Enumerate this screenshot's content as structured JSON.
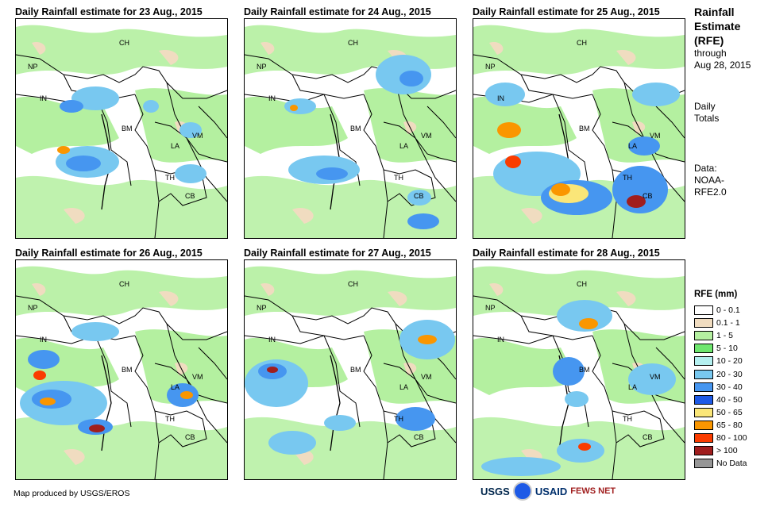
{
  "panels": [
    {
      "title": "Daily Rainfall estimate for 23 Aug., 2015"
    },
    {
      "title": "Daily Rainfall estimate for 24 Aug., 2015"
    },
    {
      "title": "Daily Rainfall estimate for 25 Aug., 2015"
    },
    {
      "title": "Daily Rainfall estimate for 26 Aug., 2015"
    },
    {
      "title": "Daily Rainfall estimate for 27 Aug., 2015"
    },
    {
      "title": "Daily Rainfall estimate for 28 Aug., 2015"
    }
  ],
  "country_labels": {
    "ch": "CH",
    "np": "NP",
    "in": "IN",
    "bm": "BM",
    "la": "LA",
    "vm": "VM",
    "th": "TH",
    "cb": "CB"
  },
  "sidebar": {
    "title_line1": "Rainfall",
    "title_line2": "Estimate",
    "title_line3": "(RFE)",
    "through": "through",
    "date": "Aug 28, 2015",
    "daily": "Daily",
    "totals": "Totals",
    "data_label": "Data:",
    "source1": "NOAA-",
    "source2": "RFE2.0"
  },
  "legend": {
    "title": "RFE (mm)",
    "items": [
      {
        "label": "0 - 0.1",
        "color": "#ffffff"
      },
      {
        "label": "0.1 - 1",
        "color": "#f0dcc0"
      },
      {
        "label": "1 - 5",
        "color": "#b4f0a0"
      },
      {
        "label": "5 - 10",
        "color": "#6ee66e"
      },
      {
        "label": "10 - 20",
        "color": "#b4f0f0"
      },
      {
        "label": "20 - 30",
        "color": "#78c8f0"
      },
      {
        "label": "30 - 40",
        "color": "#4696f0"
      },
      {
        "label": "40 - 50",
        "color": "#1e5ae6"
      },
      {
        "label": "50 - 65",
        "color": "#fae678"
      },
      {
        "label": "65 - 80",
        "color": "#fa9600"
      },
      {
        "label": "80 - 100",
        "color": "#fa3c00"
      },
      {
        "label": "> 100",
        "color": "#a01e1e"
      },
      {
        "label": "No Data",
        "color": "#969696"
      }
    ]
  },
  "footer": {
    "credit": "Map produced by USGS/EROS",
    "logo_usgs": "USGS",
    "logo_usaid": "USAID",
    "logo_fews": "FEWS NET"
  }
}
